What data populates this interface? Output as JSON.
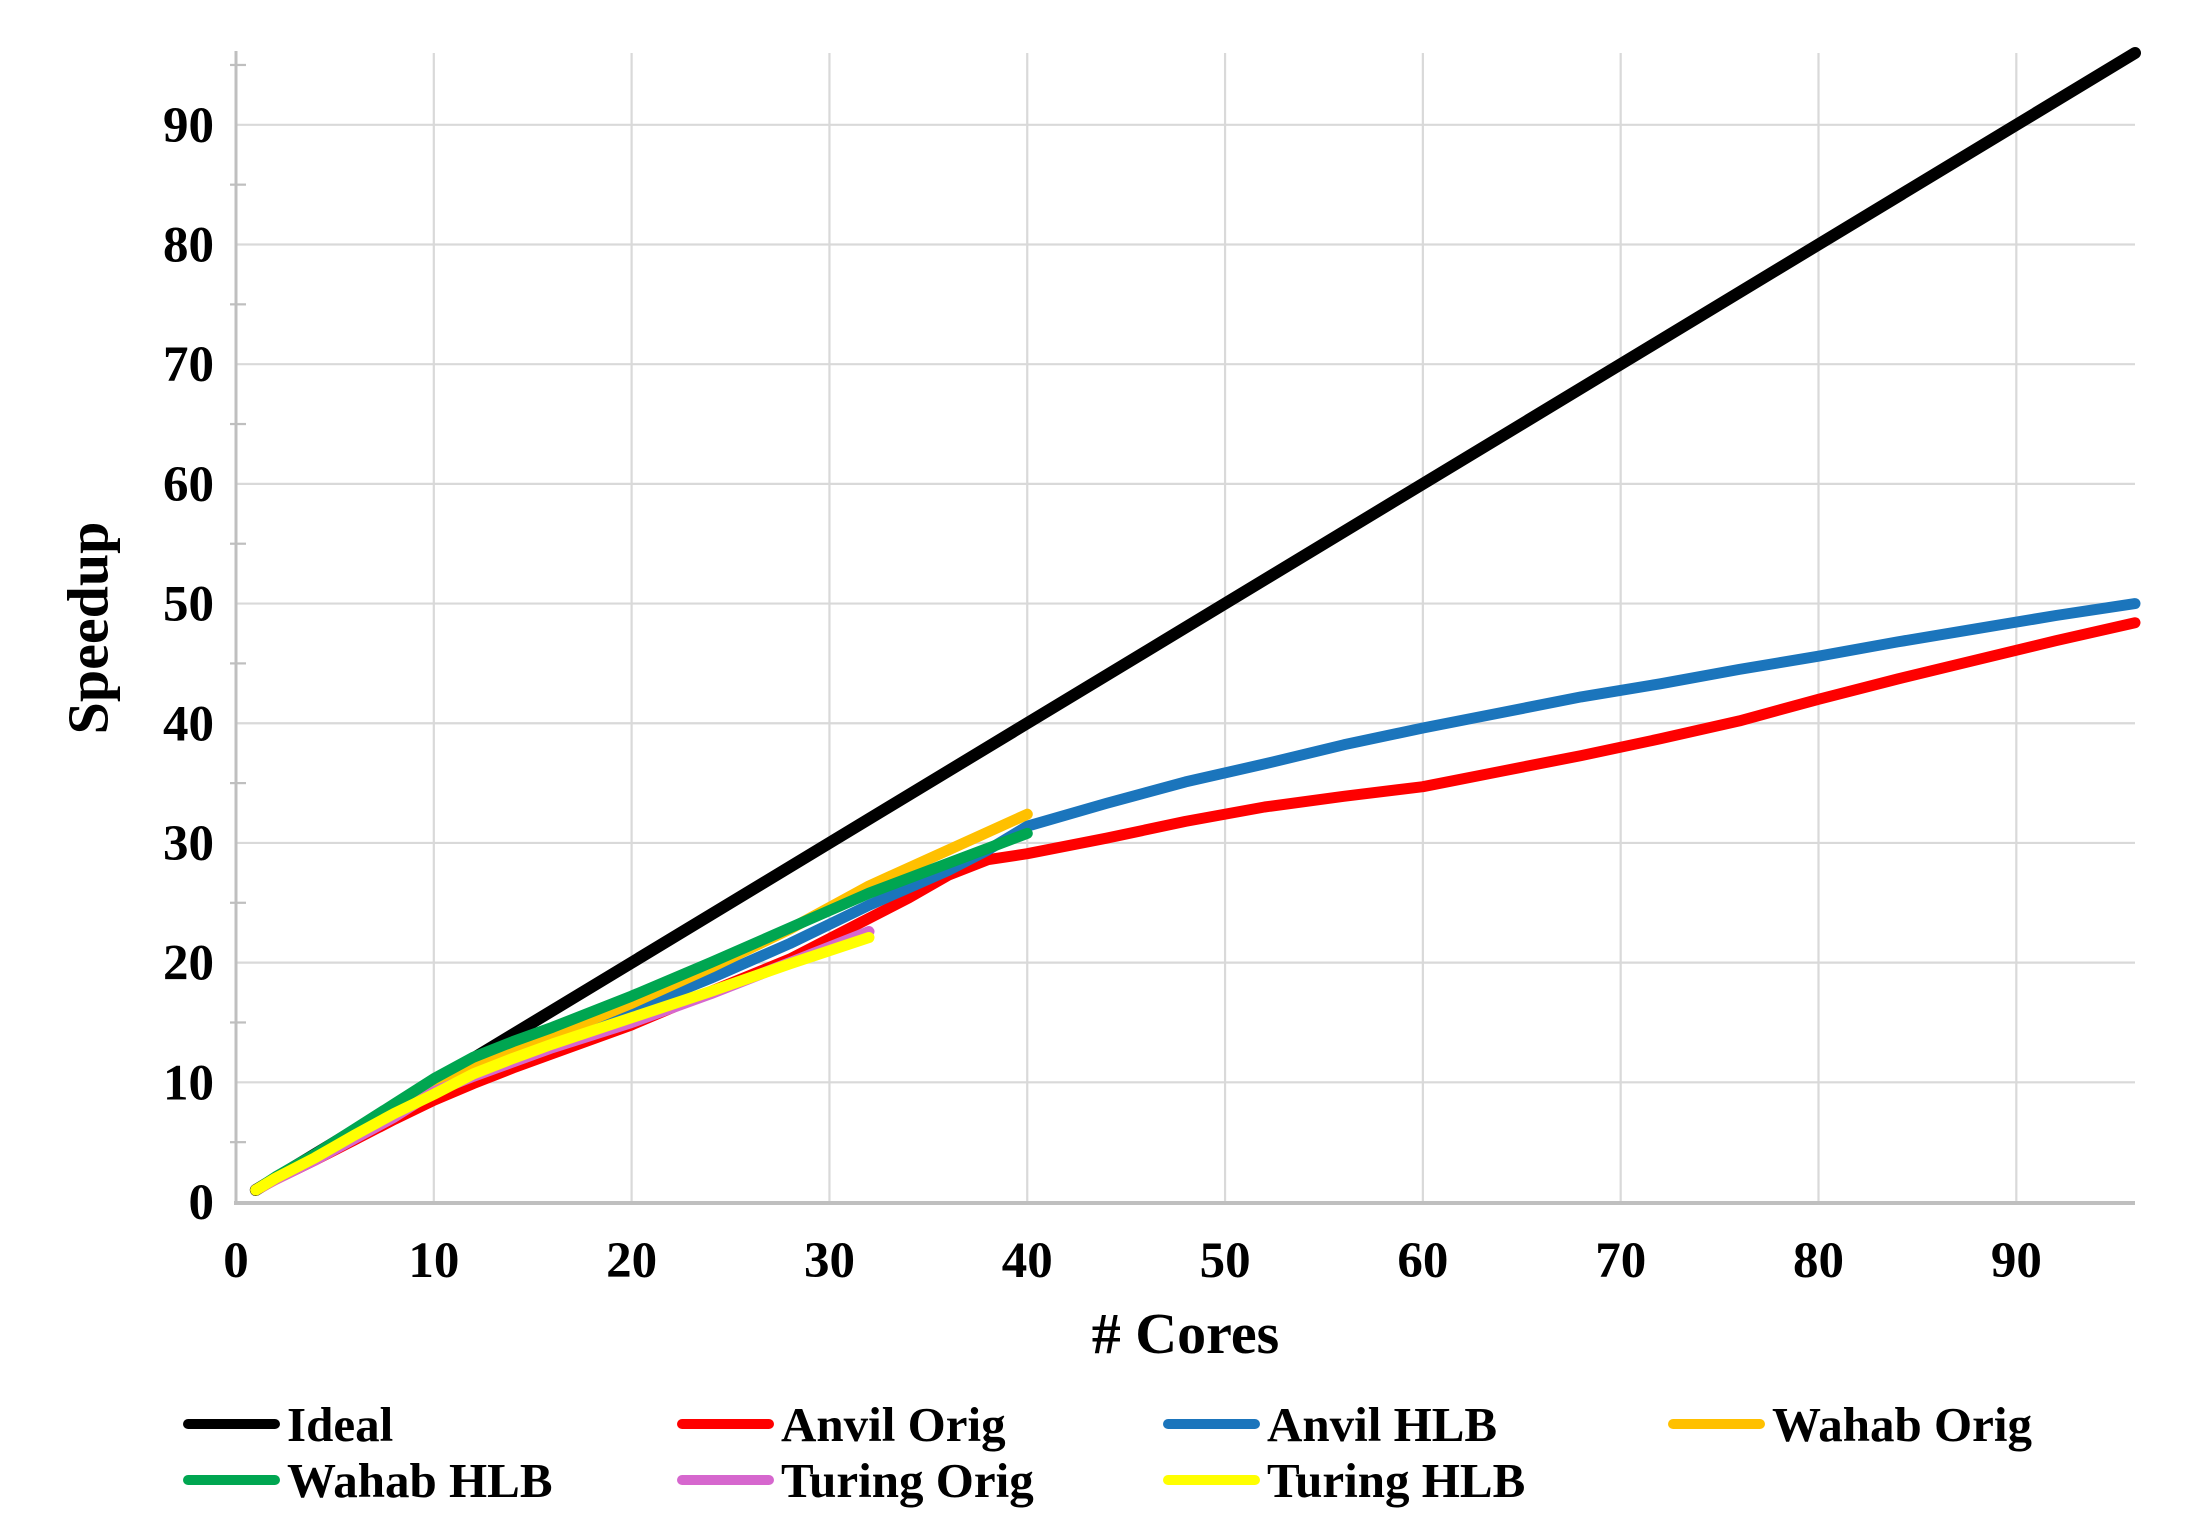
{
  "chart_data": {
    "type": "line",
    "title": "",
    "xlabel": "# Cores",
    "ylabel": "Speedup",
    "xlim": [
      0,
      96
    ],
    "ylim": [
      0,
      96
    ],
    "x_ticks": [
      0,
      10,
      20,
      30,
      40,
      50,
      60,
      70,
      80,
      90
    ],
    "y_ticks": [
      0,
      10,
      20,
      30,
      40,
      50,
      60,
      70,
      80,
      90
    ],
    "y_minor_tick_step": 5,
    "grid": "both-major",
    "legend_position": "bottom",
    "gridline_color": "#D9D9D9",
    "axis_line_color": "#BFBFBF",
    "text_color": "#000000",
    "series": [
      {
        "name": "Ideal",
        "color": "#000000",
        "points": [
          [
            1,
            1
          ],
          [
            96,
            96
          ]
        ]
      },
      {
        "name": "Anvil Orig",
        "color": "#FE0000",
        "points": [
          [
            1,
            1
          ],
          [
            2,
            1.9
          ],
          [
            4,
            3.5
          ],
          [
            6,
            5.2
          ],
          [
            8,
            6.9
          ],
          [
            10,
            8.5
          ],
          [
            12,
            9.9
          ],
          [
            14,
            11.2
          ],
          [
            16,
            12.4
          ],
          [
            20,
            14.8
          ],
          [
            24,
            17.6
          ],
          [
            28,
            20.3
          ],
          [
            32,
            23.7
          ],
          [
            34,
            25.4
          ],
          [
            36,
            27.3
          ],
          [
            38,
            28.6
          ],
          [
            40,
            29.1
          ],
          [
            44,
            30.4
          ],
          [
            48,
            31.8
          ],
          [
            52,
            33.0
          ],
          [
            56,
            33.9
          ],
          [
            60,
            34.7
          ],
          [
            64,
            36.0
          ],
          [
            68,
            37.3
          ],
          [
            72,
            38.7
          ],
          [
            76,
            40.2
          ],
          [
            80,
            42.0
          ],
          [
            84,
            43.7
          ],
          [
            88,
            45.3
          ],
          [
            92,
            46.9
          ],
          [
            96,
            48.4
          ]
        ]
      },
      {
        "name": "Anvil HLB",
        "color": "#1B75BC",
        "points": [
          [
            1,
            1
          ],
          [
            2,
            2.0
          ],
          [
            4,
            3.8
          ],
          [
            6,
            5.7
          ],
          [
            8,
            7.5
          ],
          [
            10,
            9.4
          ],
          [
            12,
            10.9
          ],
          [
            14,
            12.2
          ],
          [
            16,
            13.5
          ],
          [
            20,
            16.0
          ],
          [
            24,
            18.7
          ],
          [
            28,
            21.6
          ],
          [
            32,
            24.8
          ],
          [
            36,
            27.7
          ],
          [
            38,
            29.4
          ],
          [
            40,
            31.4
          ],
          [
            44,
            33.3
          ],
          [
            48,
            35.1
          ],
          [
            52,
            36.6
          ],
          [
            56,
            38.2
          ],
          [
            60,
            39.6
          ],
          [
            64,
            40.9
          ],
          [
            68,
            42.2
          ],
          [
            72,
            43.3
          ],
          [
            76,
            44.5
          ],
          [
            80,
            45.6
          ],
          [
            84,
            46.8
          ],
          [
            88,
            47.9
          ],
          [
            92,
            49.0
          ],
          [
            96,
            50.0
          ]
        ]
      },
      {
        "name": "Wahab Orig",
        "color": "#FFC000",
        "points": [
          [
            1,
            1
          ],
          [
            2,
            1.9
          ],
          [
            4,
            3.6
          ],
          [
            6,
            5.4
          ],
          [
            8,
            7.2
          ],
          [
            10,
            9.6
          ],
          [
            12,
            11.3
          ],
          [
            14,
            12.6
          ],
          [
            16,
            13.9
          ],
          [
            20,
            16.6
          ],
          [
            24,
            19.6
          ],
          [
            28,
            22.8
          ],
          [
            32,
            26.4
          ],
          [
            36,
            29.4
          ],
          [
            40,
            32.4
          ]
        ]
      },
      {
        "name": "Wahab HLB",
        "color": "#00A651",
        "points": [
          [
            1,
            1
          ],
          [
            2,
            2.1
          ],
          [
            4,
            4.0
          ],
          [
            6,
            6.1
          ],
          [
            8,
            8.2
          ],
          [
            10,
            10.3
          ],
          [
            12,
            12.1
          ],
          [
            14,
            13.4
          ],
          [
            16,
            14.6
          ],
          [
            20,
            17.2
          ],
          [
            24,
            20.0
          ],
          [
            28,
            22.9
          ],
          [
            32,
            25.8
          ],
          [
            36,
            28.3
          ],
          [
            40,
            30.8
          ]
        ]
      },
      {
        "name": "Turing Orig",
        "color": "#D667CE",
        "points": [
          [
            1,
            1
          ],
          [
            2,
            1.9
          ],
          [
            4,
            3.5
          ],
          [
            6,
            5.3
          ],
          [
            8,
            7.1
          ],
          [
            10,
            9.2
          ],
          [
            12,
            10.5
          ],
          [
            14,
            11.7
          ],
          [
            16,
            12.9
          ],
          [
            20,
            15.0
          ],
          [
            24,
            17.4
          ],
          [
            28,
            20.0
          ],
          [
            32,
            22.6
          ]
        ]
      },
      {
        "name": "Turing HLB",
        "color": "#FFFF00",
        "points": [
          [
            1,
            1
          ],
          [
            2,
            2.0
          ],
          [
            4,
            3.7
          ],
          [
            6,
            5.6
          ],
          [
            8,
            7.4
          ],
          [
            10,
            9.0
          ],
          [
            12,
            10.7
          ],
          [
            14,
            12.0
          ],
          [
            16,
            13.2
          ],
          [
            20,
            15.4
          ],
          [
            24,
            17.6
          ],
          [
            28,
            19.9
          ],
          [
            32,
            22.1
          ]
        ]
      }
    ]
  }
}
